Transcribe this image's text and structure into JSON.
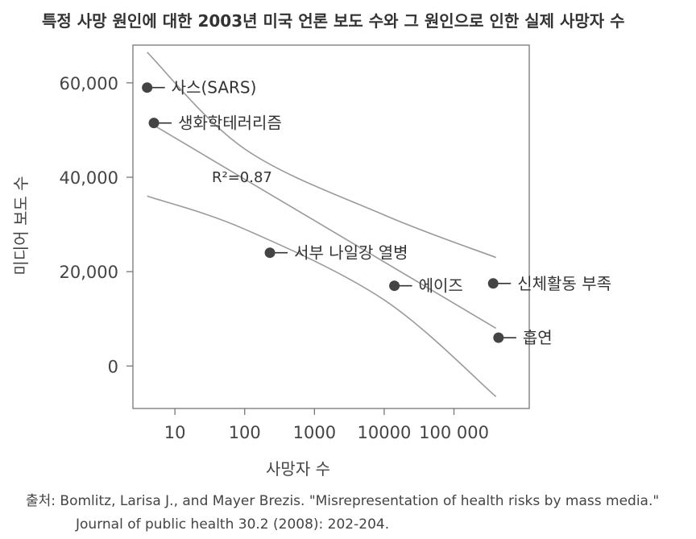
{
  "chart_data": {
    "type": "scatter",
    "title": "특정 사망 원인에 대한 2003년 미국 언론 보도 수와 그 원인으로 인한 실제 사망자 수",
    "xlabel": "사망자 수",
    "ylabel": "미디어 보도 수",
    "x_scale": "log",
    "xlim": [
      2.5,
      1200000
    ],
    "ylim": [
      -9000,
      68000
    ],
    "x_ticks": [
      10,
      100,
      1000,
      10000,
      100000
    ],
    "x_tick_labels": [
      "10",
      "100",
      "1000",
      "10000",
      "100 000"
    ],
    "y_ticks": [
      0,
      20000,
      40000,
      60000
    ],
    "y_tick_labels": [
      "0",
      "20,000",
      "40,000",
      "60,000"
    ],
    "points": [
      {
        "label": "사스(SARS)",
        "x": 4,
        "y": 59000
      },
      {
        "label": "생화학테러리즘",
        "x": 5,
        "y": 51500
      },
      {
        "label": "서부 나일강 열병",
        "x": 230,
        "y": 24000
      },
      {
        "label": "에이즈",
        "x": 14000,
        "y": 17000
      },
      {
        "label": "신체활동 부족",
        "x": 365000,
        "y": 17500
      },
      {
        "label": "흡연",
        "x": 435000,
        "y": 6000
      }
    ],
    "fit": {
      "r2_label": "R²=0.87",
      "fit_line": {
        "x": [
          5,
          400000
        ],
        "y": [
          51000,
          8000
        ]
      },
      "upper_band": {
        "x": [
          4,
          100,
          10000,
          400000
        ],
        "y": [
          66500,
          46000,
          32000,
          23000
        ]
      },
      "lower_band": {
        "x": [
          4,
          100,
          10000,
          400000
        ],
        "y": [
          36000,
          29000,
          14000,
          -6500
        ]
      }
    }
  },
  "source": {
    "prefix": "출처:",
    "line1": "Bomlitz, Larisa J., and Mayer Brezis. \"Misrepresentation of health risks by mass media.\"",
    "line2": "Journal of public health 30.2 (2008): 202-204."
  },
  "colors": {
    "point": "#444444",
    "curve": "#999999",
    "frame": "#777777"
  }
}
